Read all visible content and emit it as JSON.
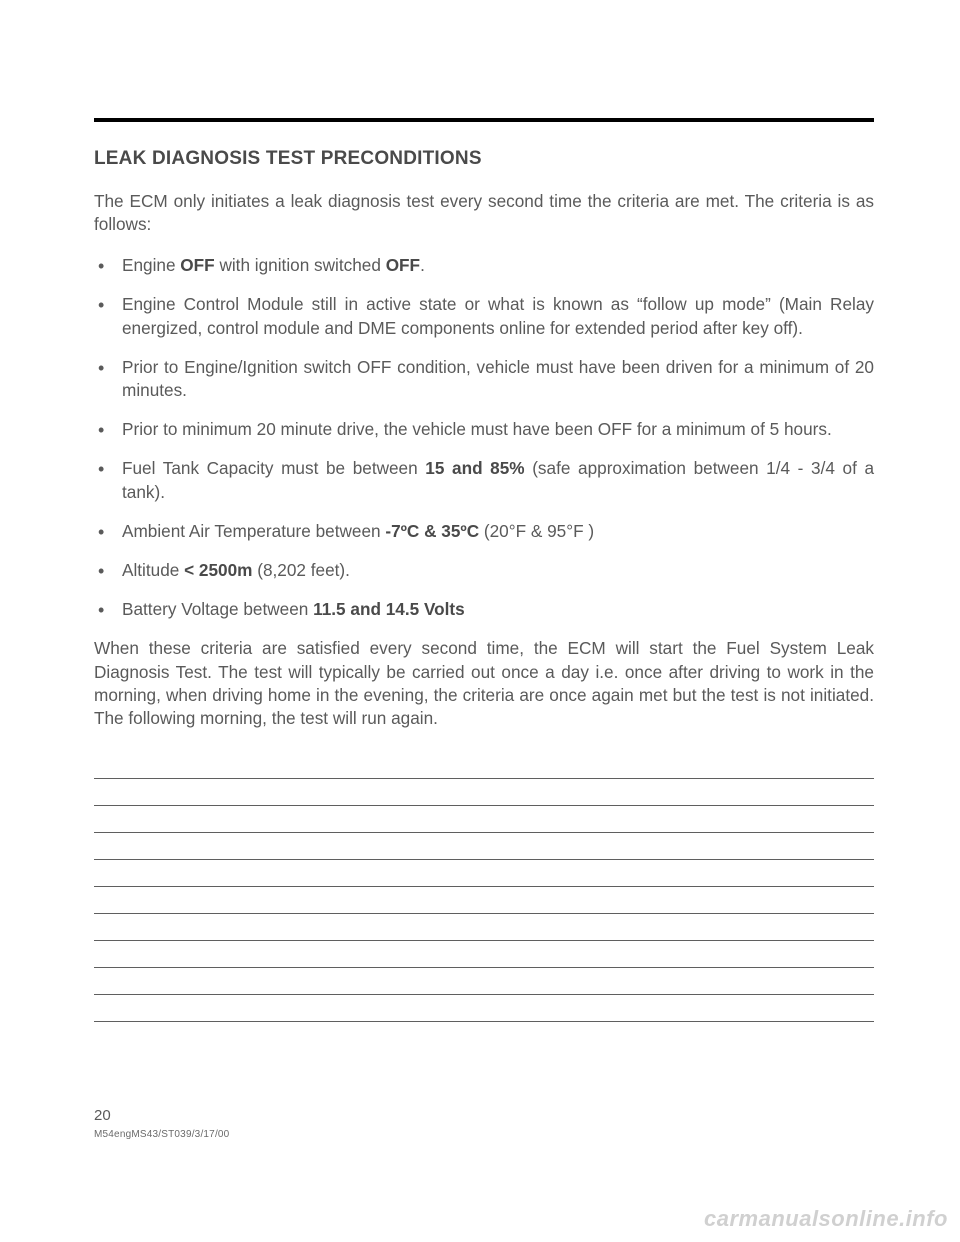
{
  "heading": "LEAK DIAGNOSIS TEST PRECONDITIONS",
  "intro": "The ECM only initiates a leak diagnosis test every second time the criteria are met.  The criteria is as follows:",
  "bullets": [
    {
      "pre": "Engine ",
      "b1": "OFF",
      "mid": " with ignition switched ",
      "b2": "OFF",
      "post": "."
    },
    {
      "text": "Engine Control Module still in active state or what is known as “follow up mode” (Main Relay energized, control module and DME components online for extended period after key off)."
    },
    {
      "text": "Prior to Engine/Ignition switch OFF condition, vehicle must have been driven for a minimum of 20 minutes."
    },
    {
      "text": "Prior to minimum 20 minute drive, the vehicle must have been OFF for a minimum of 5 hours."
    },
    {
      "pre": "Fuel Tank Capacity must be between ",
      "b1": "15 and 85%",
      "post": "  (safe approximation between 1/4 - 3/4 of a tank)."
    },
    {
      "pre": "Ambient Air Temperature between ",
      "b1": "-7ºC & 35ºC",
      "post_html": "  (20°F & 95°F )"
    },
    {
      "pre": "Altitude ",
      "b1": "< 2500m",
      "post": " (8,202 feet)."
    },
    {
      "pre": "Battery Voltage between ",
      "b1": "11.5 and 14.5 Volts",
      "post": ""
    }
  ],
  "closing": "When these criteria are satisfied every second time, the ECM will start the Fuel System Leak Diagnosis Test.  The test will typically be carried out once a day i.e. once after driving to work in the morning,  when driving home in the evening, the criteria are once again met but the test is not initiated.  The following morning, the test will run again.",
  "note_line_count": 10,
  "page_number": "20",
  "doc_code": "M54engMS43/ST039/3/17/00",
  "watermark": "carmanualsonline.info",
  "colors": {
    "text": "#5a5a5a",
    "bold": "#4a4a4a",
    "rule": "#000000",
    "line": "#5f5f5f",
    "watermark": "rgba(120,120,120,0.35)",
    "background": "#ffffff"
  }
}
